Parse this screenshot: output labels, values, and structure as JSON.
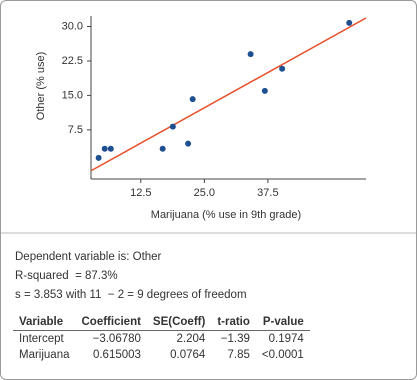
{
  "chart_data": {
    "type": "scatter",
    "xlabel": "Marijuana (% use in 9th grade)",
    "ylabel": "Other (% use)",
    "x": [
      4.2,
      5.4,
      6.6,
      16.8,
      18.8,
      21.8,
      22.7,
      34.1,
      36.9,
      40.3,
      53.5
    ],
    "values": [
      1.4,
      3.4,
      3.4,
      3.4,
      8.2,
      4.5,
      14.2,
      24.0,
      16.0,
      20.8,
      30.8
    ],
    "color": "#1d4f91",
    "fit": {
      "intercept": -3.0678,
      "slope": 0.615003,
      "color": "#e8502a"
    },
    "xlim": [
      2.7,
      56.8
    ],
    "ylim": [
      -3.2,
      32.3
    ],
    "xticks": [
      {
        "value": 12.5,
        "label": "12.5"
      },
      {
        "value": 25,
        "label": "25.0"
      },
      {
        "value": 37.5,
        "label": "37.5"
      }
    ],
    "yticks": [
      {
        "value": 7.5,
        "label": "7.5"
      },
      {
        "value": 15,
        "label": "15.0"
      },
      {
        "value": 22.5,
        "label": "22.5"
      },
      {
        "value": 30,
        "label": "30.0"
      }
    ]
  },
  "output": {
    "lines": [
      "Dependent variable is: Other",
      "R-squared  = 87.3%",
      "s = 3.853 with 11  − 2 = 9 degrees of freedom"
    ],
    "table": {
      "header": [
        "Variable",
        "Coefficient",
        "SE(Coeff)",
        "t-ratio",
        "P-value"
      ],
      "rows": [
        [
          "Intercept",
          "−3.06780",
          "2.204",
          "−1.39",
          "0.1974"
        ],
        [
          "Marijuana",
          "0.615003",
          "0.0764",
          "7.85",
          "<0.0001"
        ]
      ]
    }
  }
}
